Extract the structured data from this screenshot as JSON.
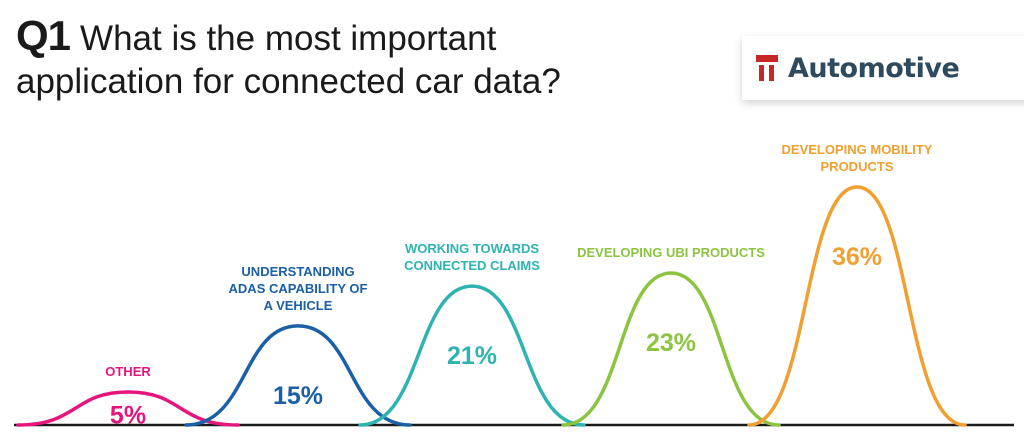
{
  "header": {
    "question_number": "Q1",
    "question_text": "What is the most important application for connected car data?"
  },
  "brand": {
    "name": "Automotive",
    "icon": "tu-logo-icon",
    "color": "#c62828"
  },
  "chart_data": {
    "type": "area",
    "title": "What is the most important application for connected car data?",
    "categories": [
      "OTHER",
      "UNDERSTANDING ADAS CAPABILITY OF A VEHICLE",
      "WORKING TOWARDS CONNECTED CLAIMS",
      "DEVELOPING UBI PRODUCTS",
      "DEVELOPING MOBILITY PRODUCTS"
    ],
    "values": [
      5,
      15,
      21,
      23,
      36
    ],
    "value_labels": [
      "5%",
      "15%",
      "21%",
      "23%",
      "36%"
    ],
    "label_lines": [
      [
        "OTHER"
      ],
      [
        "UNDERSTANDING",
        "ADAS CAPABILITY OF",
        "A VEHICLE"
      ],
      [
        "WORKING TOWARDS",
        "CONNECTED CLAIMS"
      ],
      [
        "DEVELOPING UBI PRODUCTS"
      ],
      [
        "DEVELOPING MOBILITY",
        "PRODUCTS"
      ]
    ],
    "colors": [
      "#e6157e",
      "#1b5fa6",
      "#2eb3b0",
      "#8cc43f",
      "#f0a030"
    ],
    "unit": "%",
    "ylim": [
      0,
      36
    ],
    "grid": false,
    "legend": "none"
  }
}
